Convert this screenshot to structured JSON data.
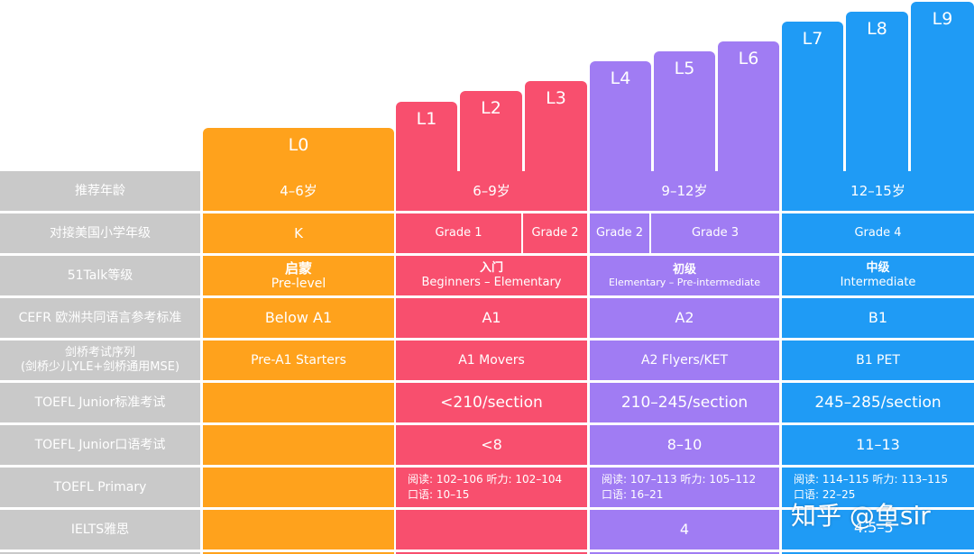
{
  "colors": {
    "label": "#c9c9c9",
    "l0": "#ffa21c",
    "pink": "#f84f6e",
    "purple": "#a07cf3",
    "blue": "#1f9bf5"
  },
  "levels": [
    "L0",
    "L1",
    "L2",
    "L3",
    "L4",
    "L5",
    "L6",
    "L7",
    "L8",
    "L9"
  ],
  "rows": {
    "age": {
      "label": "推荐年龄",
      "l0": "4–6岁",
      "pink": "6–9岁",
      "purple": "9–12岁",
      "blue": "12–15岁"
    },
    "grade": {
      "label": "对接美国小学年级",
      "l0": "K",
      "pink_a": "Grade 1",
      "pink_b": "Grade 2",
      "purple_a": "Grade 2",
      "purple_b": "Grade 3",
      "blue": "Grade 4"
    },
    "talk": {
      "label": "51Talk等级",
      "l0_cn": "启蒙",
      "l0_en": "Pre-level",
      "pink_cn": "入门",
      "pink_en": "Beginners – Elementary",
      "purple_cn": "初级",
      "purple_en": "Elementary – Pre-intermediate",
      "blue_cn": "中级",
      "blue_en": "Intermediate"
    },
    "cefr": {
      "label": "CEFR 欧洲共同语言参考标准",
      "l0": "Below A1",
      "pink": "A1",
      "purple": "A2",
      "blue": "B1"
    },
    "cambridge": {
      "label_1": "剑桥考试序列",
      "label_2": "(剑桥少儿YLE+剑桥通用MSE)",
      "l0": "Pre-A1 Starters",
      "pink": "A1 Movers",
      "purple": "A2 Flyers/KET",
      "blue": "B1 PET"
    },
    "toefl_junior": {
      "label": "TOEFL Junior标准考试",
      "pink": "<210/section",
      "purple": "210–245/section",
      "blue": "245–285/section"
    },
    "toefl_junior_oral": {
      "label": "TOEFL Junior口语考试",
      "pink": "<8",
      "purple": "8–10",
      "blue": "11–13"
    },
    "toefl_primary": {
      "label": "TOEFL Primary",
      "pink_1": "阅读: 102–106   听力: 102–104",
      "pink_2": "口语: 10–15",
      "purple_1": "阅读: 107–113   听力: 105–112",
      "purple_2": "口语: 16–21",
      "blue_1": "阅读: 114–115   听力: 113–115",
      "blue_2": "口语: 22–25"
    },
    "ielts": {
      "label": "IELTS雅思",
      "purple": "4",
      "blue": "4.5–5"
    }
  },
  "watermark": "知乎 @鱼sir"
}
